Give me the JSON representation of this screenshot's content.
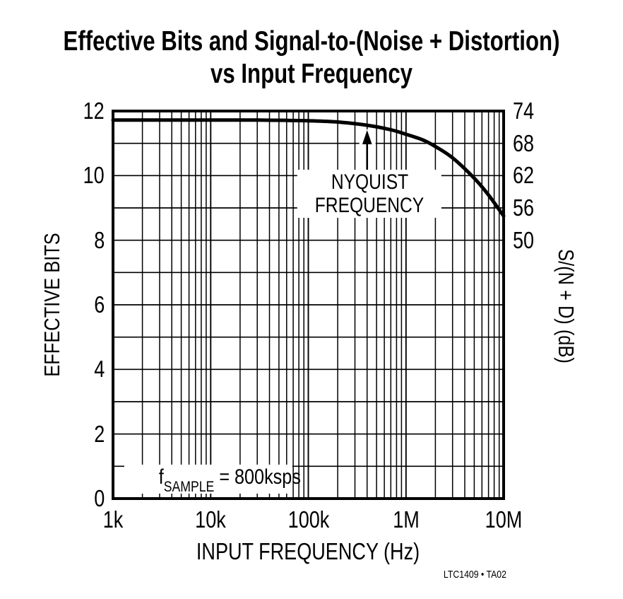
{
  "colors": {
    "ink": "#000000",
    "background": "#ffffff",
    "grid": "#000000",
    "curve": "#000000"
  },
  "title": {
    "line1": "Effective Bits and Signal-to-(Noise + Distortion)",
    "line2": "vs Input Frequency"
  },
  "caption": "LTC1409 • TA02",
  "chart_data": {
    "type": "line",
    "title": "Effective Bits and Signal-to-(Noise + Distortion) vs Input Frequency",
    "x_axis": {
      "label": "INPUT FREQUENCY (Hz)",
      "scale": "log",
      "min_hz": 1000,
      "max_hz": 10000000,
      "tick_labels": [
        "1k",
        "10k",
        "100k",
        "1M",
        "10M"
      ],
      "minor_gridlines_per_decade": [
        2,
        3,
        4,
        5,
        6,
        7,
        8,
        9
      ]
    },
    "y_axis_left": {
      "label": "EFFECTIVE BITS",
      "min": 0,
      "max": 12,
      "grid_step": 1,
      "tick_values": [
        12,
        10,
        8,
        6,
        4,
        2,
        0
      ],
      "tick_labels": [
        "12",
        "10",
        "8",
        "6",
        "4",
        "2",
        "0"
      ]
    },
    "y_axis_right": {
      "label": "S/(N + D) (dB)",
      "tick_values": [
        74,
        68,
        62,
        56,
        50
      ],
      "tick_labels": [
        "74",
        "68",
        "62",
        "56",
        "50"
      ],
      "db_per_bit": 6,
      "top_alignment": {
        "bits": 12,
        "db": 74
      }
    },
    "series": [
      {
        "name": "Effective Bits vs Input Frequency",
        "points_hz_bits": [
          [
            1000,
            11.72
          ],
          [
            3000,
            11.72
          ],
          [
            10000,
            11.72
          ],
          [
            30000,
            11.72
          ],
          [
            60000,
            11.71
          ],
          [
            100000,
            11.7
          ],
          [
            200000,
            11.66
          ],
          [
            400000,
            11.56
          ],
          [
            700000,
            11.42
          ],
          [
            1000000,
            11.28
          ],
          [
            1500000,
            11.1
          ],
          [
            2000000,
            10.9
          ],
          [
            3000000,
            10.55
          ],
          [
            5000000,
            9.92
          ],
          [
            7000000,
            9.4
          ],
          [
            10000000,
            8.75
          ]
        ]
      }
    ],
    "annotations": {
      "nyquist": {
        "line1": "NYQUIST",
        "line2": "FREQUENCY",
        "freq_hz": 400000
      },
      "sample_rate": {
        "f": "f",
        "sub": "SAMPLE",
        "rest": " = 800ksps"
      }
    },
    "legend": "none",
    "grid": true
  }
}
